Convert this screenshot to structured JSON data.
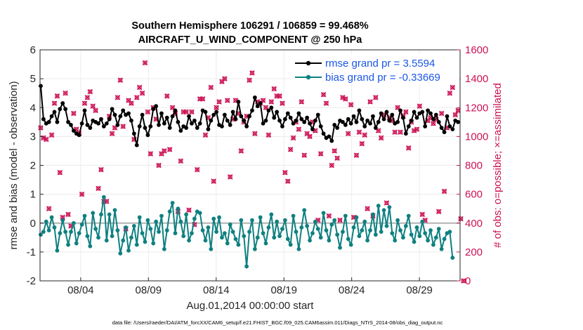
{
  "chart_data": {
    "type": "line",
    "title": "Southern Hemisphere 106291 / 106859 = 99.468%",
    "subtitle": "AIRCRAFT_U_WIND_COMPONENT @ 250 hPa",
    "xlabel": "Aug.01,2014 00:00:00 start",
    "ylabel_left": "rmse and bias (model - observation)",
    "ylabel_right": "# of obs: o=possible; ×=assimilated",
    "footnote": "data file: /Users/raeder/DAI/ATM_forcXX/CAM6_setup/f.e21.FHIST_BGC.f09_025.CAM6assim.011/Diags_NTrS_2014-08/obs_diag_output.nc",
    "xlim": [
      1,
      32
    ],
    "ylim_left": [
      -2,
      6
    ],
    "ylim_right": [
      0,
      1600
    ],
    "x_ticks": [
      4,
      9,
      14,
      19,
      24,
      29
    ],
    "x_tick_labels": [
      "08/04",
      "08/09",
      "08/14",
      "08/19",
      "08/24",
      "08/29"
    ],
    "y_ticks_left": [
      -2,
      -1,
      0,
      1,
      2,
      3,
      4,
      5,
      6
    ],
    "y_ticks_right": [
      0,
      200,
      400,
      600,
      800,
      1000,
      1200,
      1400,
      1600
    ],
    "grid": true,
    "legend_position": "top-right",
    "zero_line": 0,
    "colors": {
      "rmse": "#000000",
      "bias": "#0f8080",
      "obs": "#cc1155",
      "zero": "#b3b3b3"
    },
    "series": [
      {
        "name": "rmse",
        "legend": "rmse grand pr = 3.5594",
        "axis": "left",
        "values": [
          4.75,
          3.6,
          3.45,
          3.5,
          3.7,
          3.85,
          3.5,
          3.95,
          4.15,
          3.95,
          3.5,
          3.4,
          3.2,
          3.1,
          3.05,
          3.45,
          3.9,
          3.4,
          3.3,
          3.55,
          3.5,
          3.45,
          3.6,
          3.35,
          3.45,
          3.6,
          3.95,
          3.75,
          3.4,
          3.7,
          3.9,
          3.75,
          3.8,
          3.55,
          3.1,
          2.7,
          3.35,
          3.75,
          3.3,
          3.05,
          3.35,
          3.95,
          4.05,
          3.4,
          3.8,
          3.45,
          3.65,
          3.3,
          3.7,
          3.9,
          3.5,
          3.2,
          3.35,
          3.3,
          3.7,
          3.45,
          3.55,
          3.3,
          3.45,
          3.9,
          3.85,
          3.25,
          3.55,
          3.75,
          3.85,
          3.4,
          3.35,
          3.75,
          3.55,
          3.4,
          3.85,
          3.6,
          4.2,
          3.7,
          3.55,
          3.35,
          3.7,
          3.9,
          4.35,
          4.05,
          4.15,
          3.45,
          3.55,
          3.9,
          4.0,
          3.65,
          3.85,
          3.55,
          3.35,
          3.6,
          3.8,
          3.65,
          3.45,
          3.55,
          3.8,
          3.6,
          3.5,
          3.65,
          3.45,
          3.25,
          3.55,
          3.75,
          3.35,
          3.1,
          2.95,
          3.0,
          2.85,
          3.4,
          3.3,
          3.55,
          3.5,
          3.4,
          3.6,
          3.45,
          3.7,
          3.5,
          3.9,
          3.6,
          3.35,
          3.55,
          3.45,
          3.7,
          3.3,
          3.5,
          3.8,
          3.6,
          3.85,
          3.55,
          3.75,
          3.45,
          3.5,
          3.9,
          3.65,
          3.1,
          3.35,
          3.55,
          3.85,
          3.65,
          3.8,
          3.85,
          3.35,
          3.9,
          3.8,
          3.6,
          3.75,
          3.5,
          3.3,
          3.15,
          3.7,
          3.35,
          3.25,
          3.55,
          3.5
        ]
      },
      {
        "name": "bias",
        "legend": "bias grand pr = -0.33669",
        "axis": "left",
        "values": [
          -0.4,
          -0.3,
          0.05,
          -0.25,
          0.2,
          -0.15,
          -0.95,
          -0.35,
          0.1,
          -0.3,
          -0.75,
          -0.3,
          0.0,
          -0.7,
          -0.35,
          -0.05,
          0.25,
          -0.45,
          -0.8,
          0.35,
          -0.2,
          -0.5,
          0.3,
          0.9,
          -0.6,
          0.3,
          -0.45,
          0.45,
          -0.25,
          -1.05,
          -0.6,
          -0.15,
          -0.95,
          -0.5,
          -0.1,
          -0.75,
          0.2,
          -0.35,
          -0.65,
          0.1,
          -0.2,
          -0.7,
          0.05,
          -0.3,
          0.25,
          -0.9,
          -0.25,
          0.4,
          0.7,
          -0.35,
          0.5,
          0.05,
          -0.45,
          0.3,
          -0.6,
          -0.35,
          0.15,
          0.4,
          0.35,
          -0.25,
          -0.6,
          -0.15,
          -0.9,
          0.15,
          -0.3,
          0.2,
          -0.5,
          -0.35,
          -0.7,
          -0.05,
          -0.3,
          -0.55,
          -0.75,
          0.1,
          -0.45,
          -1.5,
          -0.3,
          0.1,
          -0.9,
          -0.5,
          0.2,
          -0.35,
          -0.7,
          -0.15,
          0.3,
          -0.5,
          0.05,
          -0.45,
          -0.2,
          0.1,
          -0.55,
          -0.75,
          0.25,
          -0.3,
          -0.9,
          -0.15,
          0.45,
          -0.1,
          -0.6,
          -0.35,
          0.05,
          -0.2,
          -0.5,
          0.35,
          -0.25,
          -0.6,
          -0.05,
          0.1,
          -0.4,
          -0.85,
          -0.3,
          0.25,
          -0.55,
          -0.75,
          -0.15,
          0.2,
          -0.45,
          -0.25,
          0.05,
          -0.6,
          -0.25,
          0.3,
          -0.4,
          0.6,
          -0.3,
          0.45,
          -0.1,
          0.55,
          -0.35,
          -0.6,
          0.1,
          -0.25,
          -0.5,
          -0.1,
          0.25,
          -0.4,
          -0.65,
          -0.15,
          -0.45,
          0.05,
          -0.35,
          -0.6,
          -0.25,
          -0.75,
          -0.5,
          -0.2,
          -0.9,
          -0.55,
          -0.35,
          -0.3,
          -1.2
        ]
      },
      {
        "name": "obs_assimilated",
        "axis": "right",
        "values": [
          1060,
          990,
          980,
          500,
          1010,
          1230,
          1280,
          750,
          440,
          1300,
          460,
          380,
          1160,
          1050,
          1020,
          600,
          1230,
          1270,
          1310,
          1210,
          1180,
          640,
          770,
          550,
          550,
          1140,
          1020,
          1060,
          1270,
          1390,
          1070,
          360,
          1250,
          1230,
          980,
          1270,
          1340,
          1300,
          1510,
          1170,
          880,
          1200,
          1120,
          800,
          880,
          900,
          1280,
          910,
          1200,
          1160,
          480,
          830,
          1170,
          1170,
          490,
          1170,
          390,
          770,
          1260,
          1260,
          1010,
          1130,
          1340,
          690,
          1200,
          1240,
          1380,
          1400,
          1250,
          720,
          1120,
          1250,
          1160,
          900,
          1100,
          1140,
          1390,
          1440,
          1020,
          1240,
          1230,
          1250,
          1200,
          1010,
          1240,
          1330,
          1280,
          1280,
          1230,
          750,
          690,
          910,
          990,
          1100,
          1050,
          1240,
          870,
          1020,
          1000,
          1100,
          1040,
          420,
          880,
          1290,
          1230,
          450,
          800,
          900,
          850,
          420,
          1270,
          1260,
          1020,
          1220,
          440,
          870,
          1030,
          950,
          1010,
          500,
          1240,
          450,
          1270,
          1040,
          990,
          1150,
          540,
          1130,
          1110,
          1030,
          1200,
          1030,
          1140,
          1170,
          920,
          1100,
          1040,
          1050,
          1210,
          460,
          420,
          1110,
          1130,
          1090,
          1120,
          480,
          1160,
          620,
          1060,
          1300,
          1340,
          1150,
          1180,
          430,
          0
        ]
      },
      {
        "name": "obs_possible",
        "axis": "right",
        "values": [
          1060,
          990,
          980,
          500,
          1010,
          1230,
          1280,
          750,
          440,
          1300,
          460,
          380,
          1160,
          1050,
          1020,
          600,
          1230,
          1270,
          1310,
          1210,
          1180,
          640,
          770,
          550,
          550,
          1140,
          1020,
          1060,
          1270,
          1390,
          1070,
          360,
          1250,
          1230,
          980,
          1270,
          1340,
          1300,
          1510,
          1170,
          880,
          1200,
          1120,
          800,
          880,
          900,
          1280,
          910,
          1200,
          1160,
          480,
          830,
          1170,
          1170,
          490,
          1170,
          390,
          770,
          1260,
          1260,
          1010,
          1130,
          1340,
          690,
          1200,
          1240,
          1380,
          1400,
          1250,
          720,
          1120,
          1250,
          1160,
          900,
          1100,
          1140,
          1390,
          1440,
          1020,
          1240,
          1230,
          1250,
          1200,
          1010,
          1240,
          1330,
          1280,
          1280,
          1230,
          750,
          690,
          910,
          990,
          1100,
          1050,
          1240,
          870,
          1020,
          1000,
          1100,
          1040,
          420,
          880,
          1290,
          1230,
          450,
          800,
          900,
          850,
          420,
          1270,
          1260,
          1020,
          1220,
          440,
          870,
          1030,
          950,
          1010,
          500,
          1240,
          450,
          1270,
          1040,
          990,
          1150,
          540,
          1130,
          1110,
          1030,
          1200,
          1030,
          1140,
          1170,
          920,
          1100,
          1040,
          1050,
          1210,
          460,
          420,
          1110,
          1130,
          1090,
          1120,
          480,
          1160,
          620,
          1060,
          1300,
          1340,
          1150,
          1180,
          430,
          0
        ]
      }
    ]
  }
}
